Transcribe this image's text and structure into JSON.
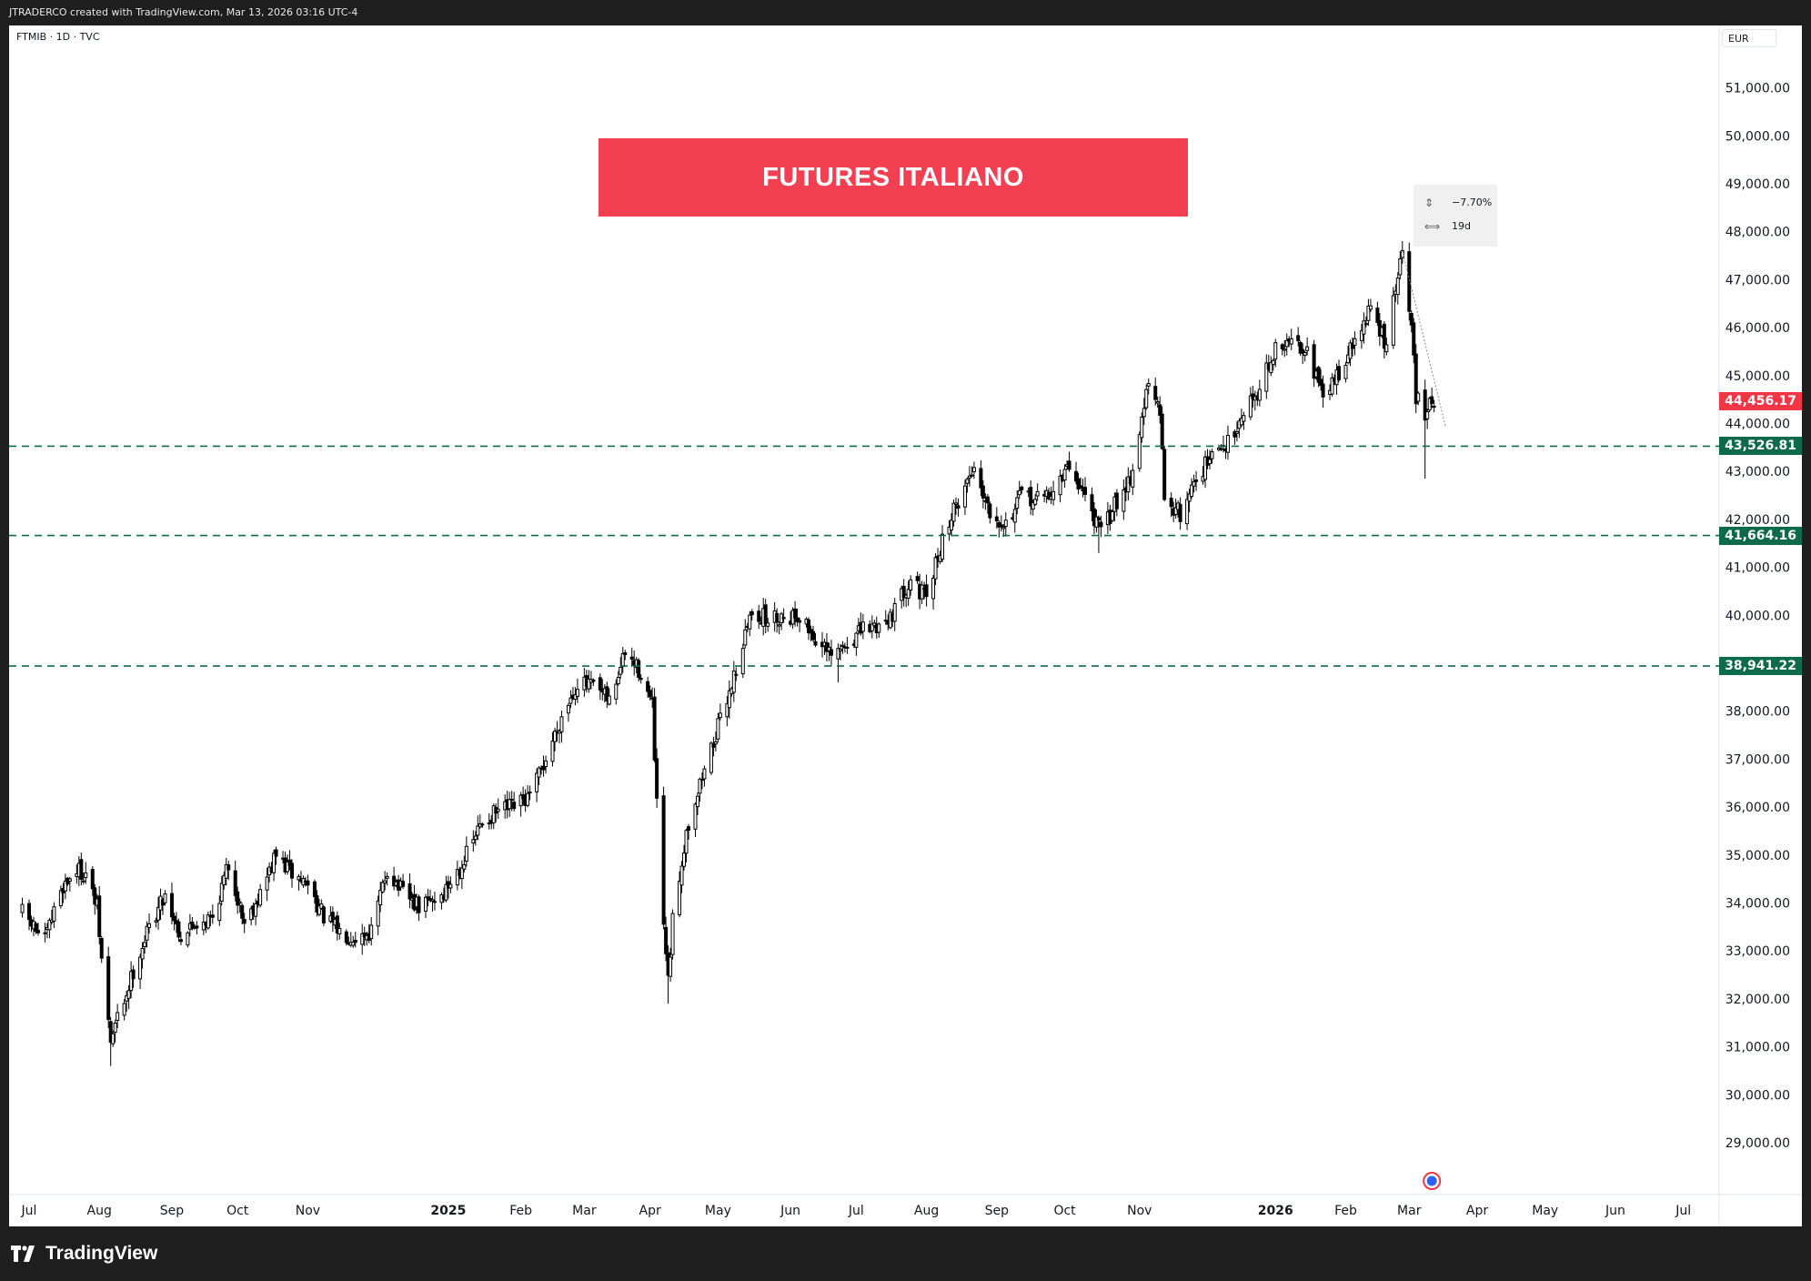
{
  "header": {
    "attribution": "JTRADERCO created with TradingView.com, Mar 13, 2026 03:16 UTC-4"
  },
  "symbol_label": "FTMIB · 1D · TVC",
  "currency": "EUR",
  "banner": {
    "text": "FUTURES ITALIANO",
    "color": "#f23f51"
  },
  "measure_tool": {
    "change": "−7.70%",
    "duration": "19d",
    "change_icon": "arrow-range-icon",
    "duration_icon": "width-range-icon"
  },
  "footer": {
    "brand": "TradingView",
    "logo_icon": "tradingview-logo-icon"
  },
  "colors": {
    "up_candle": "#ffffff",
    "down_candle": "#000000",
    "candle_border": "#000000",
    "last_price": "#f23645",
    "support_line": "#0d6b4b"
  },
  "chart_data": {
    "type": "candlestick",
    "title": "",
    "xlabel": "",
    "ylabel": "",
    "ylim": [
      28000,
      52000
    ],
    "y_ticks": [
      "29,000.00",
      "30,000.00",
      "31,000.00",
      "32,000.00",
      "33,000.00",
      "34,000.00",
      "35,000.00",
      "36,000.00",
      "37,000.00",
      "38,000.00",
      "39,000.00",
      "40,000.00",
      "41,000.00",
      "42,000.00",
      "43,000.00",
      "44,000.00",
      "45,000.00",
      "46,000.00",
      "47,000.00",
      "48,000.00",
      "49,000.00",
      "50,000.00",
      "51,000.00"
    ],
    "y_tick_values": [
      29000,
      30000,
      31000,
      32000,
      33000,
      34000,
      35000,
      36000,
      37000,
      38000,
      39000,
      40000,
      41000,
      42000,
      43000,
      44000,
      45000,
      46000,
      47000,
      48000,
      49000,
      50000,
      51000
    ],
    "x_ticks": [
      {
        "label": "Jul",
        "date": "2024-07-01",
        "bold": false
      },
      {
        "label": "Aug",
        "date": "2024-08-01",
        "bold": false
      },
      {
        "label": "Sep",
        "date": "2024-09-02",
        "bold": false
      },
      {
        "label": "Oct",
        "date": "2024-10-01",
        "bold": false
      },
      {
        "label": "Nov",
        "date": "2024-11-01",
        "bold": false
      },
      {
        "label": "2025",
        "date": "2025-01-02",
        "bold": true
      },
      {
        "label": "Feb",
        "date": "2025-02-03",
        "bold": false
      },
      {
        "label": "Mar",
        "date": "2025-03-03",
        "bold": false
      },
      {
        "label": "Apr",
        "date": "2025-04-01",
        "bold": false
      },
      {
        "label": "May",
        "date": "2025-05-01",
        "bold": false
      },
      {
        "label": "Jun",
        "date": "2025-06-02",
        "bold": false
      },
      {
        "label": "Jul",
        "date": "2025-07-01",
        "bold": false
      },
      {
        "label": "Aug",
        "date": "2025-08-01",
        "bold": false
      },
      {
        "label": "Sep",
        "date": "2025-09-01",
        "bold": false
      },
      {
        "label": "Oct",
        "date": "2025-10-01",
        "bold": false
      },
      {
        "label": "Nov",
        "date": "2025-11-03",
        "bold": false
      },
      {
        "label": "2026",
        "date": "2026-01-02",
        "bold": true
      },
      {
        "label": "Feb",
        "date": "2026-02-02",
        "bold": false
      },
      {
        "label": "Mar",
        "date": "2026-03-02",
        "bold": false
      },
      {
        "label": "Apr",
        "date": "2026-04-01",
        "bold": false
      },
      {
        "label": "May",
        "date": "2026-05-01",
        "bold": false
      },
      {
        "label": "Jun",
        "date": "2026-06-01",
        "bold": false
      },
      {
        "label": "Jul",
        "date": "2026-07-01",
        "bold": false
      }
    ],
    "close_path": [
      [
        "2024-06-28",
        33800
      ],
      [
        "2024-07-08",
        33200
      ],
      [
        "2024-07-15",
        34300
      ],
      [
        "2024-07-22",
        34700
      ],
      [
        "2024-07-26",
        34600
      ],
      [
        "2024-07-31",
        33900
      ],
      [
        "2024-08-02",
        32800
      ],
      [
        "2024-08-06",
        31100
      ],
      [
        "2024-08-09",
        31600
      ],
      [
        "2024-08-13",
        32100
      ],
      [
        "2024-08-16",
        32600
      ],
      [
        "2024-08-23",
        33500
      ],
      [
        "2024-08-30",
        34200
      ],
      [
        "2024-09-06",
        33300
      ],
      [
        "2024-09-13",
        33600
      ],
      [
        "2024-09-20",
        33700
      ],
      [
        "2024-09-27",
        34800
      ],
      [
        "2024-10-04",
        33600
      ],
      [
        "2024-10-11",
        34200
      ],
      [
        "2024-10-18",
        35000
      ],
      [
        "2024-10-25",
        34600
      ],
      [
        "2024-11-01",
        34400
      ],
      [
        "2024-11-08",
        33700
      ],
      [
        "2024-11-15",
        33400
      ],
      [
        "2024-11-22",
        33300
      ],
      [
        "2024-11-29",
        33400
      ],
      [
        "2024-12-06",
        34700
      ],
      [
        "2024-12-13",
        34200
      ],
      [
        "2024-12-20",
        33900
      ],
      [
        "2024-12-31",
        34200
      ],
      [
        "2025-01-10",
        35000
      ],
      [
        "2025-01-17",
        35700
      ],
      [
        "2025-01-24",
        35900
      ],
      [
        "2025-01-31",
        36000
      ],
      [
        "2025-02-07",
        36200
      ],
      [
        "2025-02-14",
        37000
      ],
      [
        "2025-02-21",
        37900
      ],
      [
        "2025-02-28",
        38600
      ],
      [
        "2025-03-07",
        38500
      ],
      [
        "2025-03-14",
        38200
      ],
      [
        "2025-03-21",
        39200
      ],
      [
        "2025-03-28",
        38800
      ],
      [
        "2025-04-02",
        38100
      ],
      [
        "2025-04-04",
        36000
      ],
      [
        "2025-04-07",
        33500
      ],
      [
        "2025-04-09",
        32300
      ],
      [
        "2025-04-11",
        33600
      ],
      [
        "2025-04-17",
        35500
      ],
      [
        "2025-04-25",
        36800
      ],
      [
        "2025-05-02",
        37800
      ],
      [
        "2025-05-09",
        38900
      ],
      [
        "2025-05-16",
        40100
      ],
      [
        "2025-05-23",
        39900
      ],
      [
        "2025-05-30",
        40000
      ],
      [
        "2025-06-06",
        40000
      ],
      [
        "2025-06-13",
        39500
      ],
      [
        "2025-06-20",
        39100
      ],
      [
        "2025-06-27",
        39400
      ],
      [
        "2025-07-04",
        39700
      ],
      [
        "2025-07-11",
        39800
      ],
      [
        "2025-07-18",
        40100
      ],
      [
        "2025-07-25",
        40800
      ],
      [
        "2025-08-01",
        40300
      ],
      [
        "2025-08-08",
        41600
      ],
      [
        "2025-08-15",
        42400
      ],
      [
        "2025-08-22",
        43100
      ],
      [
        "2025-08-29",
        42200
      ],
      [
        "2025-09-05",
        41900
      ],
      [
        "2025-09-12",
        42500
      ],
      [
        "2025-09-19",
        42400
      ],
      [
        "2025-09-26",
        42600
      ],
      [
        "2025-10-03",
        43100
      ],
      [
        "2025-10-10",
        42500
      ],
      [
        "2025-10-17",
        41700
      ],
      [
        "2025-10-24",
        42400
      ],
      [
        "2025-10-31",
        43000
      ],
      [
        "2025-11-05",
        44400
      ],
      [
        "2025-11-07",
        44800
      ],
      [
        "2025-11-12",
        44200
      ],
      [
        "2025-11-14",
        42500
      ],
      [
        "2025-11-21",
        42100
      ],
      [
        "2025-11-28",
        42900
      ],
      [
        "2025-12-05",
        43300
      ],
      [
        "2025-12-12",
        43600
      ],
      [
        "2025-12-19",
        44300
      ],
      [
        "2025-12-24",
        44600
      ],
      [
        "2026-01-02",
        45500
      ],
      [
        "2026-01-09",
        45700
      ],
      [
        "2026-01-16",
        45600
      ],
      [
        "2026-01-23",
        44500
      ],
      [
        "2026-01-30",
        45100
      ],
      [
        "2026-02-06",
        45700
      ],
      [
        "2026-02-13",
        46400
      ],
      [
        "2026-02-20",
        45600
      ],
      [
        "2026-02-25",
        47100
      ],
      [
        "2026-02-27",
        47500
      ],
      [
        "2026-03-03",
        46000
      ],
      [
        "2026-03-05",
        44600
      ],
      [
        "2026-03-09",
        44000
      ],
      [
        "2026-03-11",
        44700
      ],
      [
        "2026-03-13",
        44456
      ]
    ],
    "special_lows": [
      [
        "2024-08-06",
        30600
      ],
      [
        "2025-04-09",
        31900
      ],
      [
        "2025-06-23",
        38600
      ],
      [
        "2025-10-16",
        41300
      ],
      [
        "2025-11-21",
        41950
      ],
      [
        "2026-03-09",
        42850
      ]
    ],
    "horizontal_levels": [
      {
        "value": "43,526.81",
        "price": 43526.81,
        "style": "dashed",
        "color": "#0d6b4b"
      },
      {
        "value": "41,664.16",
        "price": 41664.16,
        "style": "dashed",
        "color": "#0d6b4b"
      },
      {
        "value": "38,941.22",
        "price": 38941.22,
        "style": "dashed",
        "color": "#0d6b4b"
      }
    ],
    "last_price": {
      "value": "44,456.17",
      "price": 44456.17,
      "color": "#f23645"
    },
    "measure_line": {
      "from_date": "2026-02-27",
      "from_price": 47600,
      "to_date": "2026-03-18",
      "to_price": 43940
    },
    "event_marker_date": "2026-03-12"
  }
}
